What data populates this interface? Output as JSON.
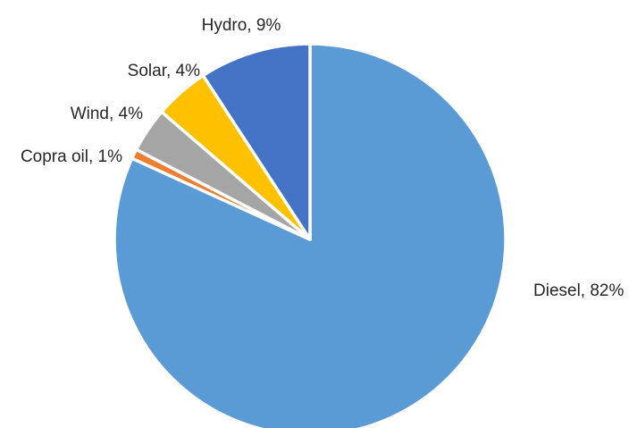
{
  "chart_data": {
    "type": "pie",
    "title": "",
    "start_angle_deg": 0,
    "direction": "clockwise",
    "legend": "none",
    "slices": [
      {
        "label": "Diesel",
        "value": 82,
        "display": "Diesel, 82%",
        "color": "#5B9BD5"
      },
      {
        "label": "Copra oil",
        "value": 1,
        "display": "Copra oil, 1%",
        "color": "#ED7D31"
      },
      {
        "label": "Wind",
        "value": 4,
        "display": "Wind, 4%",
        "color": "#A5A5A5"
      },
      {
        "label": "Solar",
        "value": 4,
        "display": "Solar, 4%",
        "color": "#FFC000"
      },
      {
        "label": "Hydro",
        "value": 9,
        "display": "Hydro, 9%",
        "color": "#4472C4"
      }
    ]
  }
}
